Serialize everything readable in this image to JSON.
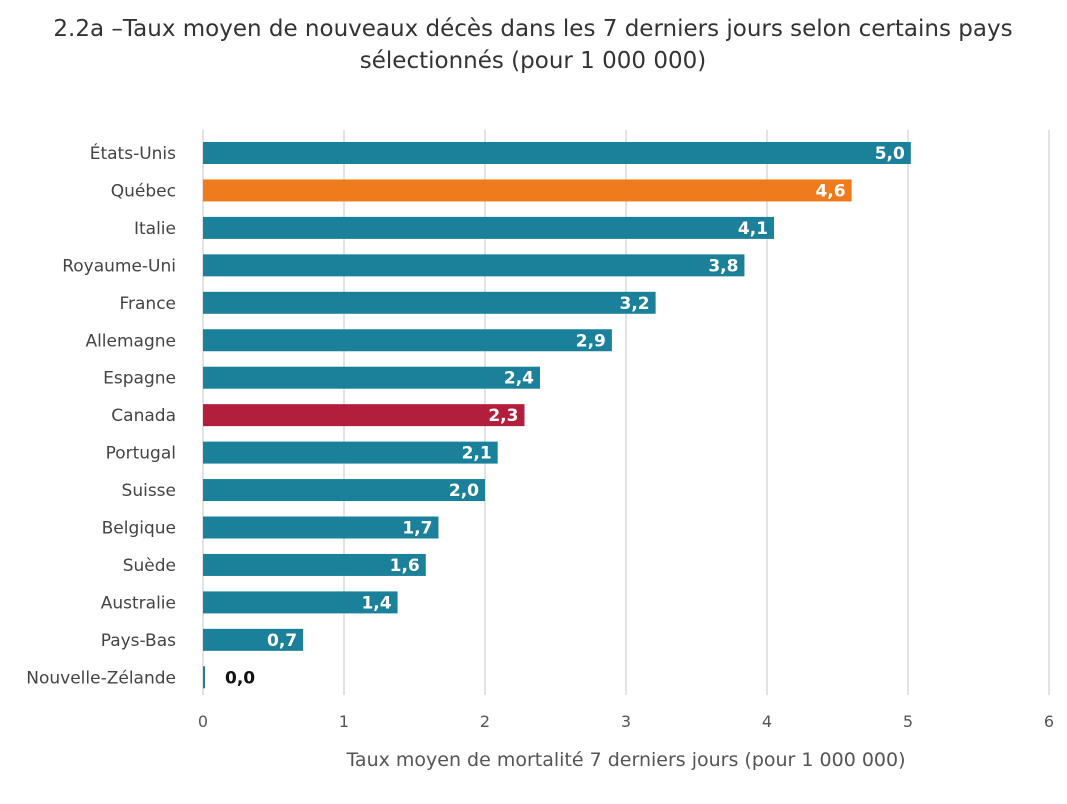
{
  "chart_data": {
    "type": "bar",
    "orientation": "horizontal",
    "title_line1": "2.2a –Taux moyen de nouveaux décès dans les 7 derniers jours selon certains pays",
    "title_line2": "sélectionnés (pour 1 000 000)",
    "xlabel": "Taux moyen de mortalité 7 derniers jours (pour 1 000 000)",
    "ylabel": "",
    "xlim": [
      0,
      6
    ],
    "xticks": [
      "0",
      "1",
      "2",
      "3",
      "4",
      "5",
      "6"
    ],
    "grid": true,
    "legend": "none",
    "categories": [
      "États-Unis",
      "Québec",
      "Italie",
      "Royaume-Uni",
      "France",
      "Allemagne",
      "Espagne",
      "Canada",
      "Portugal",
      "Suisse",
      "Belgique",
      "Suède",
      "Australie",
      "Pays-Bas",
      "Nouvelle-Zélande"
    ],
    "values": [
      5.02,
      4.6,
      4.05,
      3.84,
      3.21,
      2.9,
      2.39,
      2.28,
      2.09,
      2.0,
      1.67,
      1.58,
      1.38,
      0.71,
      0.01
    ],
    "value_labels": [
      "5,0",
      "4,6",
      "4,1",
      "3,8",
      "3,2",
      "2,9",
      "2,4",
      "2,3",
      "2,1",
      "2,0",
      "1,7",
      "1,6",
      "1,4",
      "0,7",
      "0,0"
    ],
    "colors": {
      "default": "#1b819b",
      "Québec": "#f07b1c",
      "Canada": "#b31e3c",
      "label_inside": "#ffffff",
      "label_outside": "#111111"
    }
  }
}
